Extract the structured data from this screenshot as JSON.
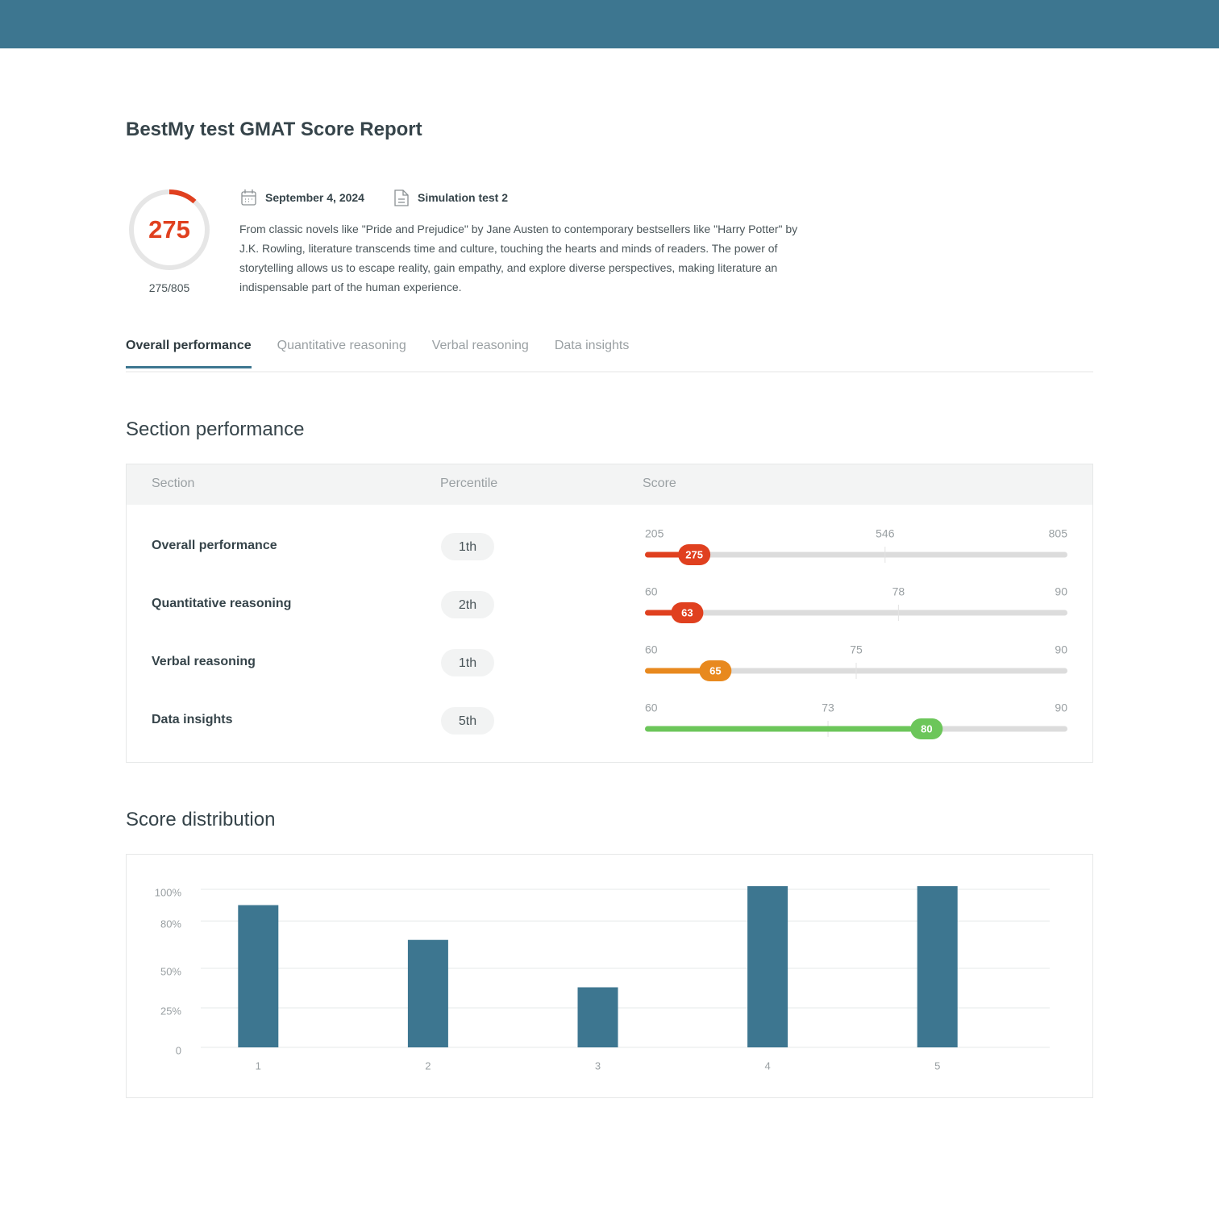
{
  "header": {
    "title": "BestMy test GMAT Score Report"
  },
  "summary": {
    "score": 275,
    "score_label": "275/805",
    "date": "September 4, 2024",
    "test": "Simulation test 2",
    "description": "From classic novels like \"Pride and Prejudice\" by Jane Austen to contemporary bestsellers like \"Harry Potter\" by J.K. Rowling, literature transcends time and culture, touching the hearts and minds of readers. The power of storytelling allows us to escape reality, gain empathy, and explore diverse perspectives, making literature an indispensable part of the human experience.",
    "color": "#e0401f"
  },
  "tabs": {
    "items": [
      "Overall performance",
      "Quantitative reasoning",
      "Verbal reasoning",
      "Data insights"
    ],
    "active": 0
  },
  "section_performance": {
    "title": "Section performance",
    "columns": [
      "Section",
      "Percentile",
      "Score"
    ],
    "rows": [
      {
        "section": "Overall performance",
        "percentile": "1th",
        "min": 205,
        "mid": 546,
        "max": 805,
        "score": 275,
        "color": "#e0401f"
      },
      {
        "section": "Quantitative reasoning",
        "percentile": "2th",
        "min": 60,
        "mid": 78,
        "max": 90,
        "score": 63,
        "color": "#e0401f"
      },
      {
        "section": "Verbal reasoning",
        "percentile": "1th",
        "min": 60,
        "mid": 75,
        "max": 90,
        "score": 65,
        "color": "#e8891e"
      },
      {
        "section": "Data insights",
        "percentile": "5th",
        "min": 60,
        "mid": 73,
        "max": 90,
        "score": 80,
        "color": "#6cc65a"
      }
    ]
  },
  "chart_data": {
    "type": "bar",
    "title": "Score distribution",
    "categories": [
      "1",
      "2",
      "3",
      "4",
      "5"
    ],
    "values": [
      90,
      68,
      38,
      102,
      102
    ],
    "color": "#3d7690",
    "ylim": [
      0,
      100
    ],
    "yticks": [
      0,
      {
        "value": 25,
        "label": "25%"
      },
      {
        "value": 50,
        "label": "50%"
      },
      {
        "value": 80,
        "label": "80%"
      },
      {
        "value": 100,
        "label": "100%"
      }
    ],
    "grid": true
  }
}
